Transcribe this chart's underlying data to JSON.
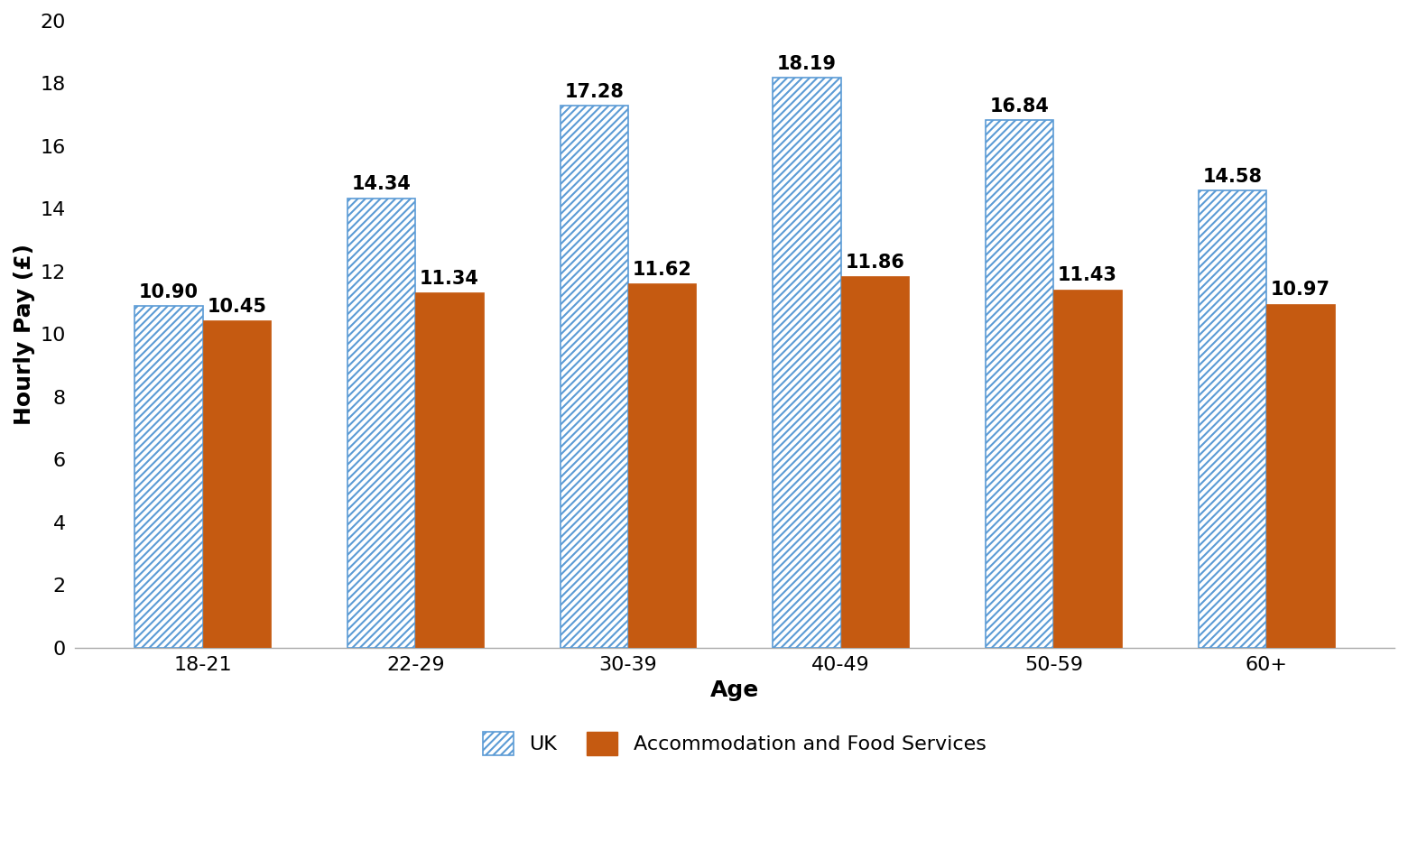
{
  "age_groups": [
    "18-21",
    "22-29",
    "30-39",
    "40-49",
    "50-59",
    "60+"
  ],
  "uk_values": [
    10.9,
    14.34,
    17.28,
    18.19,
    16.84,
    14.58
  ],
  "accom_values": [
    10.45,
    11.34,
    11.62,
    11.86,
    11.43,
    10.97
  ],
  "uk_bar_color": "#FFFFFF",
  "uk_hatch_color": "#5B9BD5",
  "uk_edge_color": "#5B9BD5",
  "accom_color": "#C55A11",
  "ylabel": "Hourly Pay (£)",
  "xlabel": "Age",
  "ylim": [
    0,
    20
  ],
  "yticks": [
    0,
    2,
    4,
    6,
    8,
    10,
    12,
    14,
    16,
    18,
    20
  ],
  "legend_uk": "UK",
  "legend_accom": "Accommodation and Food Services",
  "bar_width": 0.32,
  "tick_fontsize": 16,
  "axis_label_fontsize": 18,
  "value_label_fontsize": 15,
  "legend_fontsize": 16,
  "background_color": "#ffffff"
}
